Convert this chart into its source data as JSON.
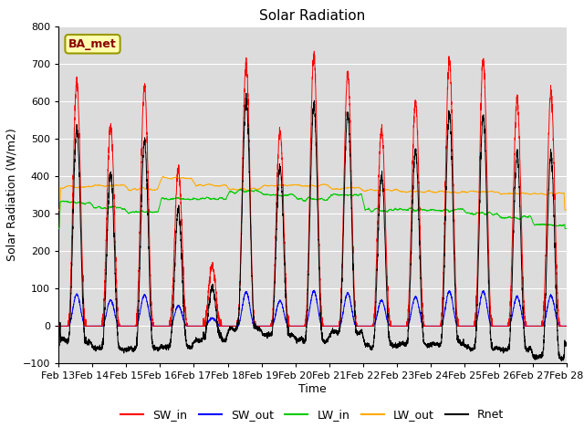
{
  "title": "Solar Radiation",
  "xlabel": "Time",
  "ylabel": "Solar Radiation (W/m2)",
  "ylim": [
    -100,
    800
  ],
  "yticks": [
    -100,
    0,
    100,
    200,
    300,
    400,
    500,
    600,
    700,
    800
  ],
  "annotation": "BA_met",
  "bg_color": "#dcdcdc",
  "line_colors": {
    "SW_in": "#ff0000",
    "SW_out": "#0000ff",
    "LW_in": "#00cc00",
    "LW_out": "#ffaa00",
    "Rnet": "#000000"
  },
  "legend_labels": [
    "SW_in",
    "SW_out",
    "LW_in",
    "LW_out",
    "Rnet"
  ],
  "n_days": 15,
  "start_day": 13,
  "points_per_day": 288
}
